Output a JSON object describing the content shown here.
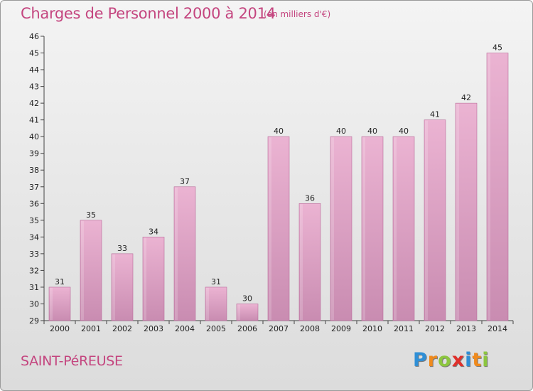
{
  "title": "Charges de Personnel 2000 à 2014",
  "subtitle": "(en milliers d'€)",
  "place": "SAINT-PéREUSE",
  "logo": {
    "letters": [
      "P",
      "r",
      "o",
      "x",
      "i",
      "t",
      "i"
    ],
    "colors": [
      "#2f8fd6",
      "#f08a1c",
      "#8cc63f",
      "#e0302b",
      "#2f8fd6",
      "#f08a1c",
      "#8cc63f"
    ]
  },
  "colors": {
    "bar_light": "#ebb3d2",
    "bar_dark": "#c98cb1",
    "bar_edge": "#b86a99",
    "accent": "#c4457f"
  },
  "chart_data": {
    "type": "bar",
    "categories": [
      "2000",
      "2001",
      "2002",
      "2003",
      "2004",
      "2005",
      "2006",
      "2007",
      "2008",
      "2009",
      "2010",
      "2011",
      "2012",
      "2013",
      "2014"
    ],
    "values": [
      31,
      35,
      33,
      34,
      37,
      31,
      30,
      40,
      36,
      40,
      40,
      40,
      41,
      42,
      45
    ],
    "ylim": [
      29,
      46
    ],
    "yticks": [
      29,
      30,
      31,
      32,
      33,
      34,
      35,
      36,
      37,
      38,
      39,
      40,
      41,
      42,
      43,
      44,
      45,
      46
    ],
    "grid": false,
    "data_labels": true
  }
}
